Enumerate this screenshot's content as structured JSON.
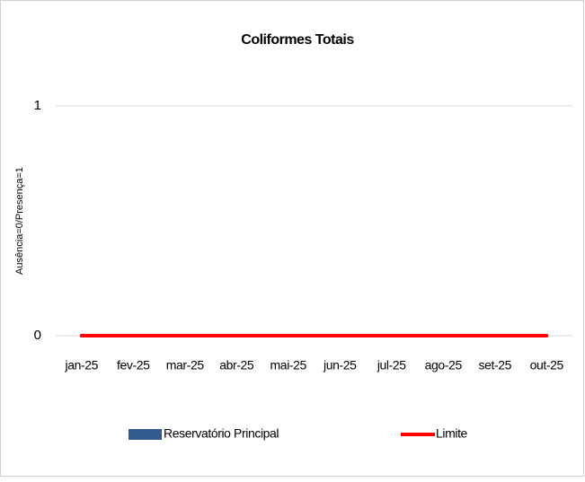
{
  "chart_data": {
    "type": "bar",
    "title": "Coliformes Totais",
    "y_label": "Ausência=0/Presença=1",
    "categories": [
      "jan-25",
      "fev-25",
      "mar-25",
      "abr-25",
      "mai-25",
      "jun-25",
      "jul-25",
      "ago-25",
      "set-25",
      "out-25"
    ],
    "series": [
      {
        "name": "Reservatório Principal",
        "color": "#335b8e",
        "type": "bar",
        "values": [
          0,
          0,
          0,
          0,
          0,
          0,
          0,
          0,
          0,
          0
        ]
      },
      {
        "name": "Limite",
        "color": "#ff0000",
        "type": "line",
        "values": [
          0,
          0,
          0,
          0,
          0,
          0,
          0,
          0,
          0,
          0
        ]
      }
    ],
    "ylim": [
      0,
      1
    ],
    "yticks": [
      0,
      1
    ],
    "grid": true
  }
}
